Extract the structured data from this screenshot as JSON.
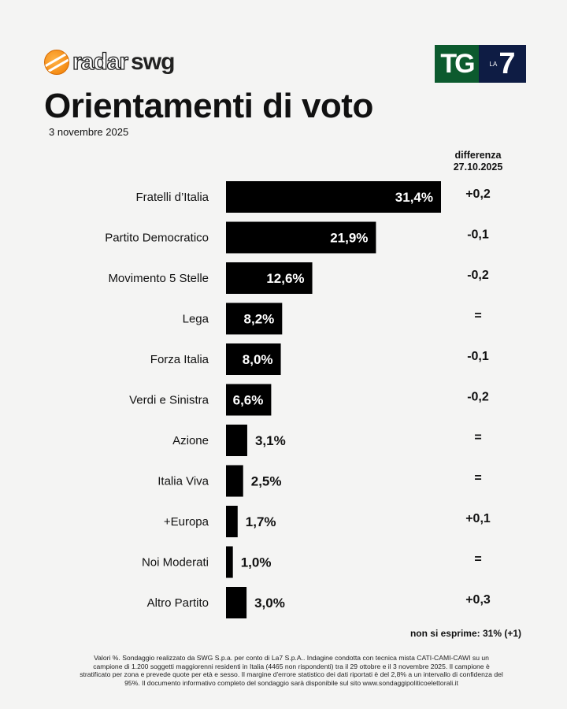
{
  "header": {
    "logo_left": "radar swg",
    "logo_left_a": "radar",
    "logo_left_b": "swg",
    "logo_right": "TG LA7",
    "logo_right_a": "TG",
    "logo_right_b": "LA",
    "logo_right_c": "7",
    "title": "Orientamenti di voto",
    "date": "3 novembre 2025"
  },
  "chart_data": {
    "type": "bar",
    "orientation": "horizontal",
    "title": "Orientamenti di voto",
    "unit": "%",
    "categories": [
      "Fratelli d’Italia",
      "Partito Democratico",
      "Movimento 5 Stelle",
      "Lega",
      "Forza Italia",
      "Verdi e Sinistra",
      "Azione",
      "Italia Viva",
      "+Europa",
      "Noi Moderati",
      "Altro Partito"
    ],
    "values": [
      31.4,
      21.9,
      12.6,
      8.2,
      8.0,
      6.6,
      3.1,
      2.5,
      1.7,
      1.0,
      3.0
    ],
    "value_labels": [
      "31,4%",
      "21,9%",
      "12,6%",
      "8,2%",
      "8,0%",
      "6,6%",
      "3,1%",
      "2,5%",
      "1,7%",
      "1,0%",
      "3,0%"
    ],
    "diff_header_line1": "differenza",
    "diff_header_line2": "27.10.2025",
    "diff": [
      "+0,2",
      "-0,1",
      "-0,2",
      "=",
      "-0,1",
      "-0,2",
      "=",
      "=",
      "+0,1",
      "=",
      "+0,3"
    ],
    "bar_color": "#000000"
  },
  "non_si_esprime": "non si esprime: 31% (+1)",
  "footnote": "Valori %. Sondaggio realizzato da SWG S.p.a. per conto di La7 S.p.A.. Indagine condotta con tecnica mista CATI-CAMI-CAWI su un campione di 1.200 soggetti maggiorenni residenti in Italia (4465 non rispondenti) tra il 29 ottobre e il 3 novembre 2025. Il campione è stratificato per zona e prevede quote per età e sesso. Il margine d'errore statistico dei dati riportati è del 2,8% a un intervallo di confidenza del 95%. Il documento informativo completo del sondaggio sarà disponibile sul sito www.sondaggipoliticoelettorali.it"
}
